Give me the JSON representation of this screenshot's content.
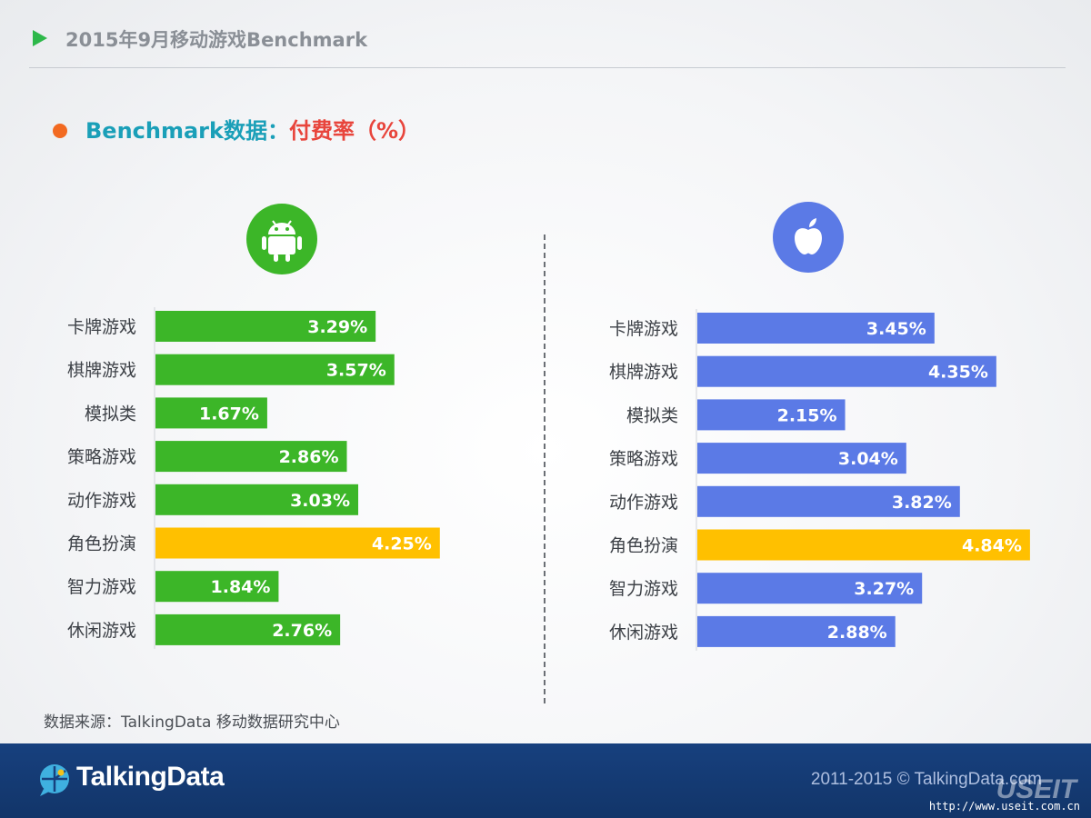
{
  "header": {
    "title": "2015年9月移动游戏Benchmark"
  },
  "subtitle": {
    "part1": "Benchmark数据：",
    "part2": "付费率（%）"
  },
  "icons": {
    "left": "android-icon",
    "right": "apple-icon"
  },
  "colors": {
    "android": "#3cb628",
    "ios": "#5b7ae6",
    "highlight": "#ffc000",
    "accent": "#f26a21"
  },
  "chart_data": [
    {
      "type": "bar",
      "orientation": "horizontal",
      "platform_icon": "android",
      "categories": [
        "卡牌游戏",
        "棋牌游戏",
        "模拟类",
        "策略游戏",
        "动作游戏",
        "角色扮演",
        "智力游戏",
        "休闲游戏"
      ],
      "values": [
        3.29,
        3.57,
        1.67,
        2.86,
        3.03,
        4.25,
        1.84,
        2.76
      ],
      "labels": [
        "3.29%",
        "3.57%",
        "1.67%",
        "2.86%",
        "3.03%",
        "4.25%",
        "1.84%",
        "2.76%"
      ],
      "highlight_index": 5,
      "color": "#3cb628",
      "highlight_color": "#ffc000"
    },
    {
      "type": "bar",
      "orientation": "horizontal",
      "platform_icon": "apple",
      "categories": [
        "卡牌游戏",
        "棋牌游戏",
        "模拟类",
        "策略游戏",
        "动作游戏",
        "角色扮演",
        "智力游戏",
        "休闲游戏"
      ],
      "values": [
        3.45,
        4.35,
        2.15,
        3.04,
        3.82,
        4.84,
        3.27,
        2.88
      ],
      "labels": [
        "3.45%",
        "4.35%",
        "2.15%",
        "3.04%",
        "3.82%",
        "4.84%",
        "3.27%",
        "2.88%"
      ],
      "highlight_index": 5,
      "color": "#5b7ae6",
      "highlight_color": "#ffc000"
    }
  ],
  "source": "数据来源：TalkingData 移动数据研究中心",
  "footer": {
    "brand": "TalkingData",
    "copyright": "2011-2015 © TalkingData.com",
    "watermark": "USEIT",
    "watermark_url": "http://www.useit.com.cn"
  }
}
